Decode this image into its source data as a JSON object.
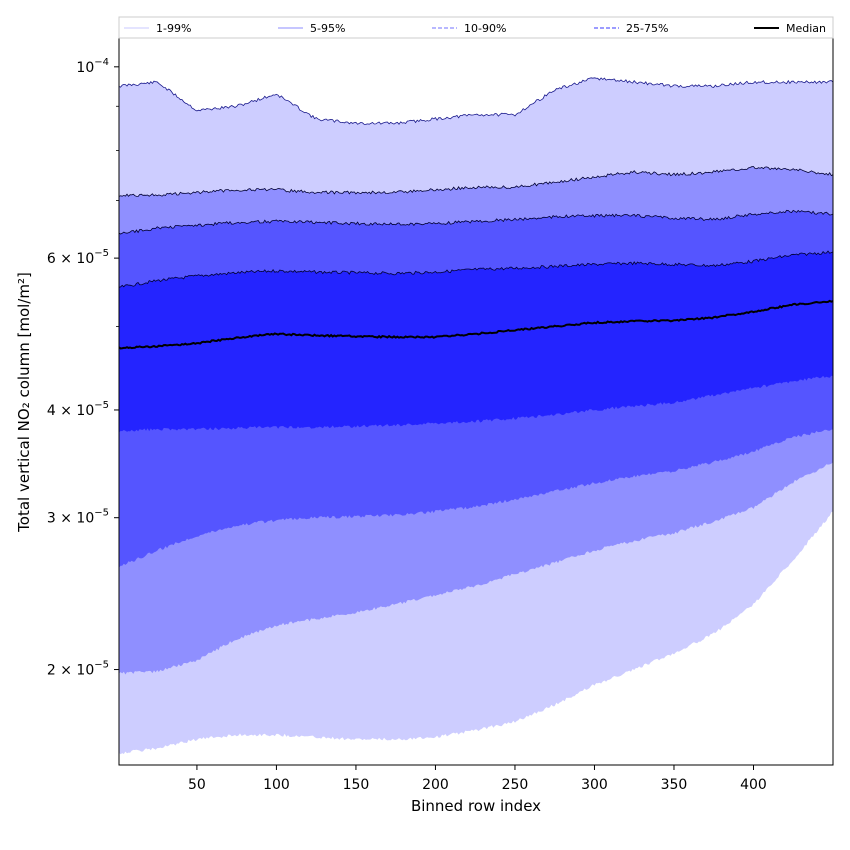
{
  "chart_data": {
    "type": "area",
    "title": "",
    "xlabel": "Binned row index",
    "ylabel": "Total vertical NO₂ column [mol/m²]",
    "yscale": "log",
    "xlim": [
      1,
      450
    ],
    "ylim": [
      1.55e-05,
      0.000108
    ],
    "x_ticks": [
      50,
      100,
      150,
      200,
      250,
      300,
      350,
      400
    ],
    "x_tick_labels": [
      "50",
      "100",
      "150",
      "200",
      "250",
      "300",
      "350",
      "400"
    ],
    "y_ticks": [
      2e-05,
      3e-05,
      4e-05,
      6e-05,
      0.0001
    ],
    "y_tick_labels": [
      {
        "mant": "2 × 10",
        "exp": "−5"
      },
      {
        "mant": "3 × 10",
        "exp": "−5"
      },
      {
        "mant": "4 × 10",
        "exp": "−5"
      },
      {
        "mant": "6 × 10",
        "exp": "−5"
      },
      {
        "mant": "10",
        "exp": "−4"
      }
    ],
    "grid": false,
    "legend_position": "top",
    "x": [
      1,
      25,
      50,
      75,
      100,
      125,
      150,
      175,
      200,
      225,
      250,
      275,
      300,
      325,
      350,
      375,
      400,
      425,
      450
    ],
    "bands": [
      {
        "name": "1-99%",
        "color": "#cdcdff",
        "lower": [
          1.6e-05,
          1.62e-05,
          1.66e-05,
          1.68e-05,
          1.68e-05,
          1.67e-05,
          1.66e-05,
          1.66e-05,
          1.67e-05,
          1.7e-05,
          1.74e-05,
          1.82e-05,
          1.92e-05,
          2e-05,
          2.09e-05,
          2.2e-05,
          2.38e-05,
          2.68e-05,
          3.05e-05
        ],
        "upper": [
          9.5e-05,
          9.6e-05,
          8.9e-05,
          9e-05,
          9.3e-05,
          8.7e-05,
          8.6e-05,
          8.6e-05,
          8.7e-05,
          8.8e-05,
          8.8e-05,
          9.4e-05,
          9.7e-05,
          9.6e-05,
          9.5e-05,
          9.5e-05,
          9.6e-05,
          9.6e-05,
          9.6e-05
        ]
      },
      {
        "name": "5-95%",
        "color": "#8f8fff",
        "lower": [
          1.98e-05,
          1.99e-05,
          2.05e-05,
          2.17e-05,
          2.25e-05,
          2.29e-05,
          2.33e-05,
          2.38e-05,
          2.44e-05,
          2.5e-05,
          2.58e-05,
          2.66e-05,
          2.75e-05,
          2.82e-05,
          2.88e-05,
          2.97e-05,
          3.08e-05,
          3.3e-05,
          3.48e-05
        ],
        "upper": [
          7.1e-05,
          7.1e-05,
          7.15e-05,
          7.2e-05,
          7.2e-05,
          7.15e-05,
          7.15e-05,
          7.15e-05,
          7.2e-05,
          7.25e-05,
          7.25e-05,
          7.35e-05,
          7.45e-05,
          7.55e-05,
          7.5e-05,
          7.55e-05,
          7.65e-05,
          7.6e-05,
          7.5e-05
        ]
      },
      {
        "name": "10-90%",
        "color": "#5555ff",
        "lower": [
          2.63e-05,
          2.75e-05,
          2.86e-05,
          2.94e-05,
          2.98e-05,
          3e-05,
          3.01e-05,
          3.02e-05,
          3.05e-05,
          3.09e-05,
          3.15e-05,
          3.22e-05,
          3.29e-05,
          3.35e-05,
          3.4e-05,
          3.48e-05,
          3.58e-05,
          3.72e-05,
          3.8e-05
        ],
        "upper": [
          6.4e-05,
          6.5e-05,
          6.55e-05,
          6.6e-05,
          6.62e-05,
          6.6e-05,
          6.58e-05,
          6.57e-05,
          6.58e-05,
          6.62e-05,
          6.65e-05,
          6.7e-05,
          6.72e-05,
          6.72e-05,
          6.68e-05,
          6.65e-05,
          6.75e-05,
          6.8e-05,
          6.75e-05
        ]
      },
      {
        "name": "25-75%",
        "color": "#2424ff",
        "lower": [
          3.78e-05,
          3.8e-05,
          3.8e-05,
          3.81e-05,
          3.82e-05,
          3.82e-05,
          3.83e-05,
          3.84e-05,
          3.86e-05,
          3.88e-05,
          3.91e-05,
          3.95e-05,
          4e-05,
          4.04e-05,
          4.08e-05,
          4.16e-05,
          4.24e-05,
          4.32e-05,
          4.38e-05
        ],
        "upper": [
          5.55e-05,
          5.65e-05,
          5.72e-05,
          5.77e-05,
          5.8e-05,
          5.78e-05,
          5.77e-05,
          5.76e-05,
          5.78e-05,
          5.82e-05,
          5.84e-05,
          5.87e-05,
          5.9e-05,
          5.92e-05,
          5.9e-05,
          5.88e-05,
          5.95e-05,
          6.05e-05,
          6.1e-05
        ]
      }
    ],
    "median": {
      "name": "Median",
      "color": "#000000",
      "values": [
        4.72e-05,
        4.74e-05,
        4.78e-05,
        4.85e-05,
        4.9e-05,
        4.88e-05,
        4.87e-05,
        4.86e-05,
        4.86e-05,
        4.9e-05,
        4.95e-05,
        5e-05,
        5.05e-05,
        5.07e-05,
        5.08e-05,
        5.12e-05,
        5.2e-05,
        5.3e-05,
        5.35e-05
      ]
    },
    "legend": [
      {
        "label": "1-99%",
        "color": "#c8c8ff",
        "style": "solid"
      },
      {
        "label": "5-95%",
        "color": "#8c8cff",
        "style": "solid"
      },
      {
        "label": "10-90%",
        "color": "#7070ff",
        "style": "dashed"
      },
      {
        "label": "25-75%",
        "color": "#3a3aff",
        "style": "dashed"
      },
      {
        "label": "Median",
        "color": "#000000",
        "style": "solid"
      }
    ]
  }
}
